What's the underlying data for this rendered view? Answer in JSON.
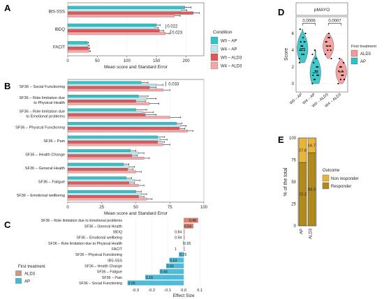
{
  "colors": {
    "w0_ap": "#2ec4c8",
    "w4_ap": "#bfe6ee",
    "w0_ald3": "#e2585a",
    "w4_ald3": "#f3a8a8",
    "c_ald3": "#c79a86",
    "c_ap": "#48b6d4",
    "pos_bar": "#d47a6a",
    "non_responder": "#e8b43a",
    "responder": "#b08a1c",
    "violin_ap": "#2cc3c6",
    "violin_ald3": "#f19a98"
  },
  "panel_labels": {
    "A": "A",
    "B": "B",
    "C": "C",
    "D": "D",
    "E": "E"
  },
  "chart_data": [
    {
      "panel": "A",
      "type": "bar",
      "orientation": "horizontal",
      "categories": [
        "IBS-SSS",
        "IBDQ",
        "FACIT"
      ],
      "series": [
        {
          "name": "W0 – AP",
          "values": [
            198,
            150,
            33
          ],
          "errors": [
            10,
            6,
            2
          ]
        },
        {
          "name": "W4 – AP",
          "values": [
            192,
            147,
            34
          ],
          "errors": [
            9,
            6,
            2
          ]
        },
        {
          "name": "W0 – ALD3",
          "values": [
            212,
            155,
            35
          ],
          "errors": [
            10,
            7,
            2
          ]
        },
        {
          "name": "W4 – ALD3",
          "values": [
            180,
            165,
            36
          ],
          "errors": [
            10,
            7,
            2
          ]
        }
      ],
      "xlim": [
        0,
        230
      ],
      "xticks": [
        "0",
        "50",
        "100",
        "150",
        "200"
      ],
      "xlabel": "Mean score and Standard Error",
      "annotations": [
        {
          "text": "0.022",
          "category": "IBDQ"
        },
        {
          "text": "0.023",
          "category": "IBDQ"
        }
      ],
      "legend_title": "Condition",
      "legend": [
        "W0 – AP",
        "W4 – AP",
        "W0 – ALD3",
        "W4 – ALD3"
      ]
    },
    {
      "panel": "B",
      "type": "bar",
      "orientation": "horizontal",
      "categories": [
        "SF36 – Social Functioning",
        "SF36 – Role limitation due\nto Physical Health",
        "SF36 – Role limitation due\nto Emotional problems",
        "SF36 – Physical Functioning",
        "SF36 – Pain",
        "SF36 – Health Change",
        "SF36 – General Health",
        "SF36 – Fatigue",
        "SF36 – Emotional wellbeing"
      ],
      "series": [
        {
          "name": "W0 – AP",
          "values": [
            54,
            52,
            50,
            80,
            66,
            46,
            41,
            43,
            50
          ],
          "errors": [
            5,
            7,
            8,
            4,
            5,
            4,
            4,
            4,
            4
          ]
        },
        {
          "name": "W4 – AP",
          "values": [
            65,
            58,
            55,
            83,
            68,
            52,
            45,
            49,
            54
          ],
          "errors": [
            5,
            7,
            8,
            4,
            5,
            4,
            4,
            4,
            4
          ]
        },
        {
          "name": "W0 – ALD3",
          "values": [
            60,
            50,
            57,
            82,
            66,
            47,
            44,
            45,
            52
          ],
          "errors": [
            5,
            7,
            8,
            4,
            5,
            4,
            4,
            4,
            4
          ]
        },
        {
          "name": "W4 – ALD3",
          "values": [
            70,
            60,
            75,
            88,
            70,
            56,
            50,
            52,
            58
          ],
          "errors": [
            5,
            7,
            8,
            4,
            5,
            4,
            4,
            4,
            4
          ]
        }
      ],
      "xlim": [
        0,
        100
      ],
      "xticks": [
        "0",
        "25",
        "50",
        "75",
        "100"
      ],
      "xlabel": "Mean score and Standard Error",
      "annotations": [
        {
          "text": "0.033",
          "category": "SF36 – Social Functioning"
        }
      ]
    },
    {
      "panel": "C",
      "type": "bar",
      "orientation": "horizontal",
      "categories": [
        "SF36 – Role limitation due to Emotional problems",
        "SF36 – General Health",
        "IBDQ",
        "SF36 – Emotional wellbeing",
        "SF36 – Role limitation due to Physical Health",
        "FACIT",
        "SF36 – Physical Functioning",
        "IBS-SSS",
        "SF36 – Health Change",
        "SF36 – Fatigue",
        "SF36 – Pain",
        "SF36 – Social Functioning"
      ],
      "values": [
        0.09,
        0.06,
        0.0,
        0.0,
        -0.004,
        0.0,
        -0.03,
        -0.09,
        -0.11,
        -0.15,
        -0.24,
        -0.35
      ],
      "labels": [
        "0.48",
        "0.54",
        "0.84",
        "0.94",
        "0.95",
        "1",
        "0.25",
        "0.63",
        "0.56",
        "0.44",
        "0.16",
        "0.05"
      ],
      "groups": [
        "ALD3",
        "ALD3",
        "ALD3",
        "ALD3",
        "AP",
        "ALD3",
        "AP",
        "AP",
        "AP",
        "AP",
        "AP",
        "AP"
      ],
      "xlim": [
        -0.37,
        0.16
      ],
      "xticks": [
        "-0.3",
        "-0.2",
        "-0.1",
        "0.0",
        "0.1"
      ],
      "xlabel": "Effect Size",
      "legend_title": "First treatment",
      "legend": [
        "ALD3",
        "AP"
      ]
    },
    {
      "panel": "D",
      "type": "scatter",
      "subtype": "violin",
      "title": "pMAYO",
      "ylabel": "Score",
      "categories": [
        "W0 – AP",
        "W4 – AP",
        "W0 – ALD3",
        "W4 – ALD3"
      ],
      "groups": [
        "AP",
        "AP",
        "ALD3",
        "ALD3"
      ],
      "medians": [
        4.2,
        1.3,
        4.5,
        1.4
      ],
      "points": [
        [
          3.0,
          3.5,
          4.0,
          4.0,
          4.5,
          5.0,
          5.0,
          5.5,
          6.0,
          4.5,
          3.5,
          2.5,
          4.0,
          5.0,
          6.5
        ],
        [
          0.0,
          0.5,
          1.0,
          1.0,
          1.5,
          2.0,
          2.5,
          3.0,
          1.0,
          0.5,
          2.0,
          3.5,
          4.0,
          1.5
        ],
        [
          3.5,
          4.0,
          4.5,
          5.0,
          5.5,
          4.0,
          5.0,
          6.0,
          3.0,
          4.5,
          5.5
        ],
        [
          0.0,
          0.5,
          1.0,
          1.5,
          2.0,
          2.5,
          3.0,
          1.0,
          0.5,
          2.0,
          1.5
        ]
      ],
      "ylim": [
        -1,
        8
      ],
      "yticks": [
        "0",
        "2",
        "4",
        "6"
      ],
      "annotations": [
        {
          "text": "0.0006"
        },
        {
          "text": "0.0007"
        }
      ],
      "legend_title": "First treatment",
      "legend": [
        "ALD3",
        "AP"
      ]
    },
    {
      "panel": "E",
      "type": "bar",
      "subtype": "stacked",
      "categories": [
        "AP",
        "ALD3"
      ],
      "series": [
        {
          "name": "Non responder",
          "values": [
            27.8,
            16.7
          ]
        },
        {
          "name": "Responder",
          "values": [
            72.2,
            83.3
          ]
        }
      ],
      "ylim": [
        0,
        100
      ],
      "yticks": [
        "0",
        "25",
        "50",
        "75",
        "100"
      ],
      "ylabel": "% of the total",
      "legend_title": "Outcome",
      "legend": [
        "Non responder",
        "Responder"
      ]
    }
  ]
}
